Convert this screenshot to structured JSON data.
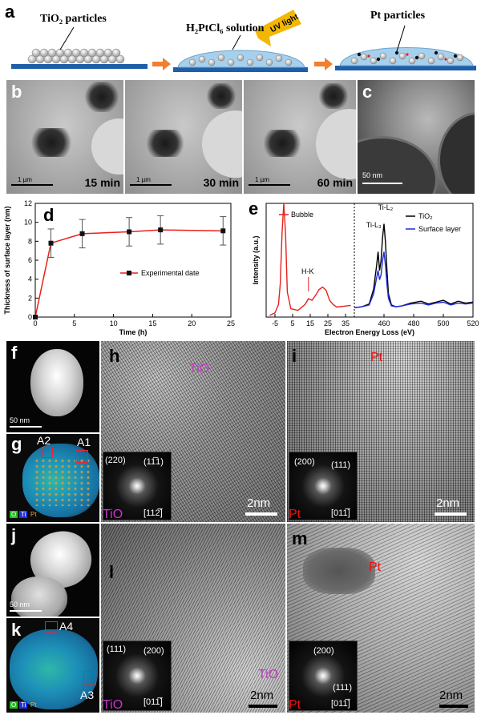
{
  "panel_a": {
    "label": "a",
    "step1": "TiO₂ particles",
    "step2": "H₂PtCl₆ solution",
    "uv": "UV light",
    "step3": "Pt particles"
  },
  "panel_b": {
    "label": "b",
    "frames": [
      {
        "time": "15 min",
        "scale": "1 µm"
      },
      {
        "time": "30 min",
        "scale": "1 µm"
      },
      {
        "time": "60 min",
        "scale": "1 µm"
      }
    ]
  },
  "panel_c": {
    "label": "c",
    "scale": "50 nm"
  },
  "panel_f": {
    "label": "f",
    "scale": "50 nm"
  },
  "panel_g": {
    "label": "g",
    "regions": [
      "A2",
      "A1"
    ],
    "legend": [
      "O",
      "Ti",
      "Pt"
    ]
  },
  "panel_h": {
    "label": "h",
    "phase": "TiO",
    "fft": [
      "(220)",
      "(11̅1)",
      "[112̅]"
    ],
    "fft_label": "TiO",
    "scale": "2nm"
  },
  "panel_i": {
    "label": "i",
    "phase": "Pt",
    "fft": [
      "(200)",
      "(111)",
      "[011̅]"
    ],
    "fft_label": "Pt",
    "scale": "2nm"
  },
  "panel_j": {
    "label": "j",
    "scale": "50 nm"
  },
  "panel_k": {
    "label": "k",
    "regions": [
      "A4",
      "A3"
    ],
    "legend": [
      "O",
      "Ti",
      "Pt"
    ]
  },
  "panel_l": {
    "label": "l",
    "phase": "TiO",
    "fft": [
      "(111)",
      "(200)",
      "[011̅]"
    ],
    "fft_label": "TiO",
    "scale": "2nm"
  },
  "panel_m": {
    "label": "m",
    "phase": "Pt",
    "fft": [
      "(200)",
      "(111)",
      "[011̅]"
    ],
    "fft_label": "Pt",
    "scale": "2nm"
  },
  "colors": {
    "tio": "#cc33cc",
    "pt": "#ee1111",
    "red_series": "#e8201c",
    "blue_series": "#1f2bd6",
    "substrate": "#1f5ea8",
    "arrow": "#f08030",
    "uv": "#f2b705"
  },
  "chart_data": [
    {
      "panel": "d",
      "type": "line",
      "xlabel": "Time (h)",
      "ylabel": "Thickness of surface layer (nm)",
      "xlim": [
        0,
        25
      ],
      "ylim": [
        0,
        12
      ],
      "xticks": [
        0,
        5,
        10,
        15,
        20,
        25
      ],
      "yticks": [
        0,
        2,
        4,
        6,
        8,
        10,
        12
      ],
      "grid": false,
      "legend": "center-right",
      "series": [
        {
          "name": "Experimental date",
          "x": [
            0,
            2,
            6,
            12,
            16,
            24
          ],
          "y": [
            0,
            7.8,
            8.8,
            9.0,
            9.2,
            9.1
          ],
          "err": [
            0,
            1.5,
            1.5,
            1.5,
            1.5,
            1.5
          ]
        }
      ]
    },
    {
      "panel": "e",
      "type": "line",
      "xlabel": "Electron Energy Loss (eV)",
      "ylabel": "Intensity (a.u.)",
      "xticks_left": [
        "-5",
        "5",
        "15",
        "25",
        "35"
      ],
      "xticks_right": [
        "460",
        "480",
        "500",
        "520"
      ],
      "annotations": [
        "H-K",
        "Ti-L₂",
        "Ti-L₃"
      ],
      "legend": "top-right",
      "series": [
        {
          "name": "Bubble",
          "x": [
            -8,
            -5,
            -3,
            -2,
            -1,
            0,
            1,
            2,
            4,
            8,
            12,
            14,
            16,
            18,
            20,
            22,
            24,
            26,
            28,
            30,
            34,
            38
          ],
          "y": [
            0.02,
            0.05,
            0.15,
            0.4,
            1.0,
            2.5,
            1.0,
            0.3,
            0.1,
            0.08,
            0.15,
            0.22,
            0.2,
            0.26,
            0.33,
            0.36,
            0.32,
            0.2,
            0.15,
            0.12,
            0.13,
            0.14
          ]
        },
        {
          "name": "TiO₂",
          "x": [
            440,
            445,
            450,
            453,
            455,
            456,
            457,
            458,
            459,
            460,
            461,
            462,
            463,
            465,
            468,
            472,
            478,
            485,
            490,
            495,
            500,
            505,
            510,
            515,
            520
          ],
          "y": [
            0.1,
            0.11,
            0.14,
            0.3,
            0.55,
            0.7,
            0.5,
            0.6,
            0.85,
            1.0,
            0.8,
            0.5,
            0.25,
            0.13,
            0.11,
            0.12,
            0.15,
            0.17,
            0.14,
            0.16,
            0.18,
            0.14,
            0.17,
            0.15,
            0.16
          ]
        },
        {
          "name": "Surface layer",
          "x": [
            440,
            445,
            450,
            453,
            455,
            456,
            457,
            458,
            459,
            460,
            461,
            462,
            463,
            465,
            468,
            472,
            478,
            485,
            490,
            495,
            500,
            505,
            510,
            515,
            520
          ],
          "y": [
            0.1,
            0.11,
            0.13,
            0.25,
            0.42,
            0.5,
            0.4,
            0.45,
            0.6,
            0.7,
            0.55,
            0.35,
            0.2,
            0.12,
            0.11,
            0.12,
            0.14,
            0.15,
            0.13,
            0.15,
            0.16,
            0.13,
            0.15,
            0.14,
            0.15
          ]
        }
      ]
    }
  ]
}
